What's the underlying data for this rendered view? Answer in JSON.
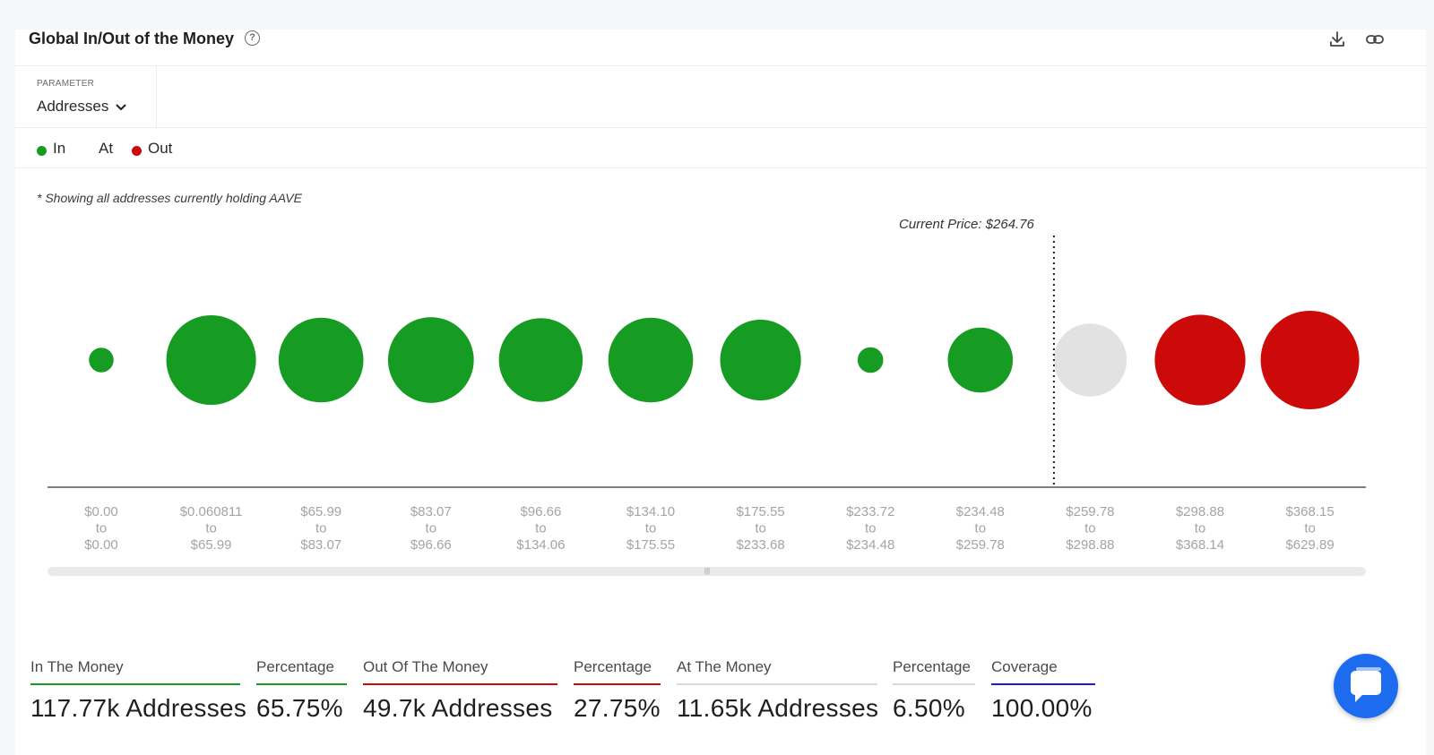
{
  "header": {
    "title": "Global In/Out of the Money",
    "help_icon": "question-circle-icon",
    "download_icon": "download-icon",
    "link_icon": "link-icon"
  },
  "parameter": {
    "label": "PARAMETER",
    "value": "Addresses",
    "dropdown_icon": "chevron-down-icon"
  },
  "legend": {
    "in_label": "In",
    "at_label": "At",
    "out_label": "Out"
  },
  "note": "* Showing all addresses currently holding AAVE",
  "colors": {
    "in": "#169c22",
    "at": "#e2e2e2",
    "out": "#cc0a0a",
    "axis": "#333333",
    "coverage": "#1a1ad6",
    "chat": "#1d6cf0"
  },
  "chart_data": {
    "type": "bubble",
    "current_price_label": "Current Price: $264.76",
    "current_price": 264.76,
    "buckets": [
      {
        "from": "$0.00",
        "sep": "to",
        "to": "$0.00",
        "status": "in",
        "relative_size": 0.25
      },
      {
        "from": "$0.060811",
        "sep": "to",
        "to": "$65.99",
        "status": "in",
        "relative_size": 0.91
      },
      {
        "from": "$65.99",
        "sep": "to",
        "to": "$83.07",
        "status": "in",
        "relative_size": 0.86
      },
      {
        "from": "$83.07",
        "sep": "to",
        "to": "$96.66",
        "status": "in",
        "relative_size": 0.87
      },
      {
        "from": "$96.66",
        "sep": "to",
        "to": "$134.06",
        "status": "in",
        "relative_size": 0.85
      },
      {
        "from": "$134.10",
        "sep": "to",
        "to": "$175.55",
        "status": "in",
        "relative_size": 0.86
      },
      {
        "from": "$175.55",
        "sep": "to",
        "to": "$233.68",
        "status": "in",
        "relative_size": 0.82
      },
      {
        "from": "$233.72",
        "sep": "to",
        "to": "$234.48",
        "status": "in",
        "relative_size": 0.26
      },
      {
        "from": "$234.48",
        "sep": "to",
        "to": "$259.78",
        "status": "in",
        "relative_size": 0.66
      },
      {
        "from": "$259.78",
        "sep": "to",
        "to": "$298.88",
        "status": "at",
        "relative_size": 0.74
      },
      {
        "from": "$298.88",
        "sep": "to",
        "to": "$368.14",
        "status": "out",
        "relative_size": 0.92
      },
      {
        "from": "$368.15",
        "sep": "to",
        "to": "$629.89",
        "status": "out",
        "relative_size": 1.0
      }
    ]
  },
  "stats": [
    {
      "label": "In The Money",
      "value": "117.77k Addresses",
      "color": "#169c22"
    },
    {
      "label": "Percentage",
      "value": "65.75%",
      "color": "#169c22"
    },
    {
      "label": "Out Of The Money",
      "value": "49.7k Addresses",
      "color": "#cc0a0a"
    },
    {
      "label": "Percentage",
      "value": "27.75%",
      "color": "#cc0a0a"
    },
    {
      "label": "At The Money",
      "value": "11.65k Addresses",
      "color": "#d9d9d9"
    },
    {
      "label": "Percentage",
      "value": "6.50%",
      "color": "#d9d9d9"
    },
    {
      "label": "Coverage",
      "value": "100.00%",
      "color": "#1a1ad6"
    }
  ],
  "chat": {
    "icon": "chat-bubble-icon"
  }
}
